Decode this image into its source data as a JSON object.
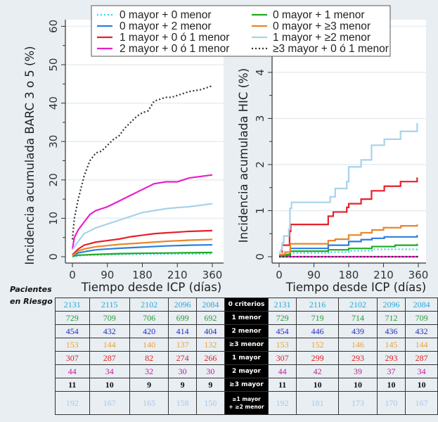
{
  "legend": [
    {
      "label": "0 mayor + 0 menor",
      "color": "#33d6e6",
      "dash": true
    },
    {
      "label": "0 mayor + 2 menor",
      "color": "#2a7fe0",
      "dash": false
    },
    {
      "label": "1 mayor + 0 ó 1 menor",
      "color": "#e8202a",
      "dash": false
    },
    {
      "label": "2 mayor + 0 ó 1 menor",
      "color": "#ea1fc8",
      "dash": false
    },
    {
      "label": "0 mayor + 1 menor",
      "color": "#22aa22",
      "dash": false
    },
    {
      "label": "0 mayor + ≥3 menor",
      "color": "#e8862a",
      "dash": false
    },
    {
      "label": "1 mayor + ≥2 menor",
      "color": "#a8d2ea",
      "dash": false
    },
    {
      "label": "≥3 mayor + 0 ó 1 menor",
      "color": "#333333",
      "dash": true
    }
  ],
  "chart_data": [
    {
      "type": "line",
      "ylabel": "Incidencia acumulada BARC 3 o 5 (%)",
      "xlabel": "Tiempo desde ICP (días)",
      "xlim": [
        0,
        360
      ],
      "ylim": [
        0,
        60
      ],
      "xticks": [
        "0",
        "90",
        "180",
        "210",
        "360"
      ],
      "yticks": [
        "0",
        "10",
        "20",
        "30",
        "40",
        "50",
        "60"
      ],
      "grid": true,
      "series": [
        {
          "name": "0 mayor + 0 menor",
          "x": [
            0,
            30,
            120,
            240,
            360
          ],
          "y": [
            0,
            0.4,
            0.6,
            0.7,
            0.8
          ]
        },
        {
          "name": "0 mayor + 2 menor",
          "x": [
            0,
            15,
            30,
            60,
            90,
            120,
            180,
            240,
            300,
            360
          ],
          "y": [
            0.2,
            1,
            1.3,
            1.8,
            2,
            2.2,
            2.5,
            2.8,
            3,
            3.1
          ]
        },
        {
          "name": "1 mayor + 0 ó 1 menor",
          "x": [
            0,
            15,
            30,
            60,
            90,
            120,
            150,
            180,
            210,
            240,
            270,
            300,
            360
          ],
          "y": [
            0.5,
            2,
            3,
            3.8,
            4.2,
            4.6,
            5.2,
            5.6,
            6,
            6.2,
            6.4,
            6.6,
            6.8
          ]
        },
        {
          "name": "2 mayor + 0 ó 1 menor",
          "x": [
            0,
            5,
            15,
            30,
            45,
            60,
            90,
            120,
            150,
            180,
            210,
            240,
            270,
            300,
            360
          ],
          "y": [
            2,
            5,
            7,
            9,
            11,
            12,
            13,
            14.5,
            16,
            17.5,
            19,
            19.5,
            19.5,
            20.5,
            21.3
          ]
        },
        {
          "name": "0 mayor + 1 menor",
          "x": [
            0,
            15,
            60,
            120,
            180,
            270,
            360
          ],
          "y": [
            0.1,
            0.4,
            0.6,
            0.8,
            0.9,
            1,
            1.1
          ]
        },
        {
          "name": "0 mayor + ≥3 menor",
          "x": [
            0,
            15,
            30,
            60,
            90,
            120,
            180,
            240,
            300,
            360
          ],
          "y": [
            0.3,
            1.5,
            2,
            2.6,
            2.9,
            3.2,
            3.6,
            4,
            4.3,
            4.5
          ]
        },
        {
          "name": "1 mayor + ≥2 menor",
          "x": [
            0,
            15,
            30,
            60,
            90,
            120,
            150,
            180,
            210,
            240,
            270,
            300,
            360
          ],
          "y": [
            1.8,
            4,
            6,
            7.5,
            8.5,
            9.5,
            10.5,
            11.5,
            12,
            12.5,
            12.8,
            13,
            13.8
          ]
        },
        {
          "name": "≥3 mayor + 0 ó 1 menor",
          "x": [
            0,
            5,
            15,
            30,
            45,
            60,
            75,
            90,
            105,
            120,
            135,
            150,
            165,
            180,
            195,
            210,
            225,
            240,
            255,
            270,
            300,
            330,
            360
          ],
          "y": [
            4.5,
            10,
            15,
            21,
            25,
            27,
            27.5,
            29,
            30.5,
            31.5,
            33.5,
            35,
            36.5,
            37.5,
            38,
            40.5,
            41,
            41.5,
            41.5,
            42,
            43,
            43.5,
            44.5
          ]
        }
      ]
    },
    {
      "type": "line",
      "ylabel": "Incidencia acumulada HIC (%)",
      "xlabel": "Tiempo desde ICP (días)",
      "xlim": [
        0,
        360
      ],
      "ylim": [
        0,
        5
      ],
      "xticks": [
        "0",
        "90",
        "180",
        "210",
        "360"
      ],
      "yticks": [
        "0",
        "1",
        "2",
        "3",
        "4",
        "5"
      ],
      "grid": true,
      "step": true,
      "series": [
        {
          "name": "0 mayor + 0 menor",
          "x": [
            0,
            29,
            127,
            180,
            240,
            357
          ],
          "y": [
            0,
            0.08,
            0.1,
            0.13,
            0.16,
            0.19
          ]
        },
        {
          "name": "0 mayor + 2 menor",
          "x": [
            0,
            29,
            127,
            180,
            212,
            240,
            272,
            357
          ],
          "y": [
            0.03,
            0.18,
            0.25,
            0.33,
            0.37,
            0.4,
            0.43,
            0.47
          ]
        },
        {
          "name": "1 mayor + 0 ó 1 menor",
          "x": [
            0,
            8,
            27,
            30,
            127,
            140,
            175,
            180,
            212,
            239,
            272,
            314,
            357
          ],
          "y": [
            0.1,
            0.25,
            0.55,
            0.7,
            0.88,
            0.97,
            1.07,
            1.15,
            1.25,
            1.43,
            1.53,
            1.63,
            1.72
          ]
        },
        {
          "name": "2 mayor + 0 ó 1 menor",
          "x": [
            0,
            360
          ],
          "y": [
            0,
            0
          ]
        },
        {
          "name": "0 mayor + 1 menor",
          "x": [
            0,
            15,
            29,
            127,
            180,
            240,
            300,
            357
          ],
          "y": [
            0.02,
            0.05,
            0.12,
            0.15,
            0.18,
            0.22,
            0.25,
            0.28
          ]
        },
        {
          "name": "0 mayor + ≥3 menor",
          "x": [
            0,
            15,
            29,
            127,
            145,
            180,
            212,
            240,
            270,
            315,
            357
          ],
          "y": [
            0.05,
            0.1,
            0.28,
            0.35,
            0.38,
            0.47,
            0.52,
            0.58,
            0.63,
            0.67,
            0.7
          ]
        },
        {
          "name": "1 mayor + ≥2 menor",
          "x": [
            0,
            5,
            8,
            12,
            25,
            28,
            32,
            127,
            132,
            145,
            175,
            180,
            212,
            239,
            272,
            314,
            357
          ],
          "y": [
            0.1,
            0.15,
            0.3,
            0.45,
            0.6,
            1.05,
            1.18,
            1.18,
            1.3,
            1.48,
            1.63,
            1.95,
            2.1,
            2.42,
            2.55,
            2.72,
            2.9
          ]
        },
        {
          "name": "≥3 mayor + 0 ó 1 menor",
          "x": [
            0,
            360
          ],
          "y": [
            0,
            0
          ]
        }
      ]
    }
  ],
  "risk_table": {
    "title_line1": "Pacientes",
    "title_line2": "en Riesgo",
    "rows": [
      {
        "criterion": "0 criterios",
        "color": "#2aa6dc",
        "left": [
          "2131",
          "2115",
          "2102",
          "2096",
          "2084"
        ],
        "right": [
          "2131",
          "2116",
          "2102",
          "2096",
          "2084"
        ]
      },
      {
        "criterion": "1 menor",
        "color": "#2a9a3a",
        "left": [
          "729",
          "709",
          "706",
          "699",
          "692"
        ],
        "right": [
          "729",
          "719",
          "714",
          "712",
          "709"
        ]
      },
      {
        "criterion": "2 menor",
        "color": "#2a2abf",
        "left": [
          "454",
          "432",
          "420",
          "414",
          "404"
        ],
        "right": [
          "454",
          "446",
          "439",
          "436",
          "432"
        ]
      },
      {
        "criterion": "≥3 menor",
        "color": "#f0a030",
        "left": [
          "153",
          "144",
          "140",
          "137",
          "132"
        ],
        "right": [
          "153",
          "152",
          "146",
          "145",
          "144"
        ]
      },
      {
        "criterion": "1 mayor",
        "color": "#e02020",
        "left": [
          "307",
          "287",
          "82",
          "274",
          "266"
        ],
        "right": [
          "307",
          "299",
          "293",
          "293",
          "287"
        ]
      },
      {
        "criterion": "2 mayor",
        "color": "#c81a9a",
        "left": [
          "44",
          "34",
          "32",
          "30",
          "30"
        ],
        "right": [
          "44",
          "42",
          "39",
          "37",
          "34"
        ]
      },
      {
        "criterion": "≥3 mayor",
        "color": "#111111",
        "bold": true,
        "left": [
          "11",
          "10",
          "9",
          "9",
          "9"
        ],
        "right": [
          "11",
          "10",
          "10",
          "10",
          "10"
        ]
      },
      {
        "criterion_line1": "≥1 mayor",
        "criterion_line2": "+ ≥2 menor",
        "color": "#a8c8ec",
        "left": [
          "192",
          "167",
          "165",
          "158",
          "150"
        ],
        "right": [
          "192",
          "181",
          "173",
          "170",
          "167"
        ]
      }
    ]
  }
}
